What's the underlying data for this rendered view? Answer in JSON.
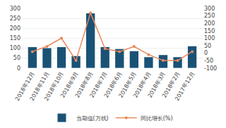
{
  "chart_data": {
    "type": "bar",
    "categories": [
      "2018年12月",
      "2018年11月",
      "2018年10月",
      "2018年9月",
      "2018年8月",
      "2018年7月",
      "2018年6月",
      "2018年5月",
      "2018年4月",
      "2018年3月",
      "2018年2月",
      "2017年12月"
    ],
    "series": [
      {
        "name": "当期值(万线)",
        "type": "bar",
        "color": "#1a5276",
        "values": [
          105,
          100,
          105,
          60,
          275,
          105,
          95,
          85,
          55,
          65,
          55,
          110
        ]
      },
      {
        "name": "同比增长(%)",
        "type": "line",
        "axis": "y2",
        "color": "#e8885a",
        "marker": "circle",
        "values": [
          10,
          45,
          100,
          -50,
          270,
          30,
          10,
          45,
          -10,
          -50,
          -50,
          10
        ]
      }
    ],
    "ylim": [
      0,
      300
    ],
    "yticks": [
      0,
      50,
      100,
      150,
      200,
      250,
      300
    ],
    "y2lim": [
      -100,
      300
    ],
    "y2ticks": [
      -100,
      -50,
      0,
      50,
      100,
      150,
      200,
      250,
      300
    ],
    "grid": true,
    "legend": "bottom"
  }
}
